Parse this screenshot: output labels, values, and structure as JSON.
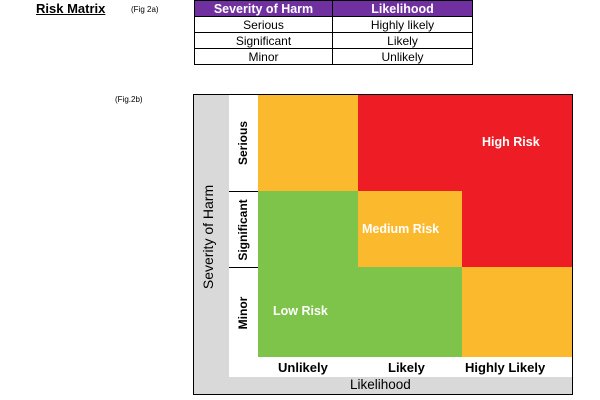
{
  "header": {
    "title": "Risk Matrix",
    "fig_a": "(Fig 2a)",
    "fig_b": "(Fig.2b)"
  },
  "table": {
    "headers": [
      "Severity of Harm",
      "Likelihood"
    ],
    "rows": [
      [
        "Serious",
        "Highly likely"
      ],
      [
        "Significant",
        "Likely"
      ],
      [
        "Minor",
        "Unlikely"
      ]
    ],
    "header_color": "#7030a0"
  },
  "matrix": {
    "y_axis_label": "Severity of Harm",
    "x_axis_label": "Likelihood",
    "rows": [
      "Serious",
      "Significant",
      "Minor"
    ],
    "columns": [
      "Unlikely",
      "Likely",
      "Highly Likely"
    ],
    "zones": {
      "low": "Low Risk",
      "medium": "Medium Risk",
      "high": "High Risk"
    },
    "colors": {
      "low": "#7ec34a",
      "medium": "#fbb92e",
      "high": "#ee1c25",
      "frame": "#d9d9d9"
    }
  }
}
